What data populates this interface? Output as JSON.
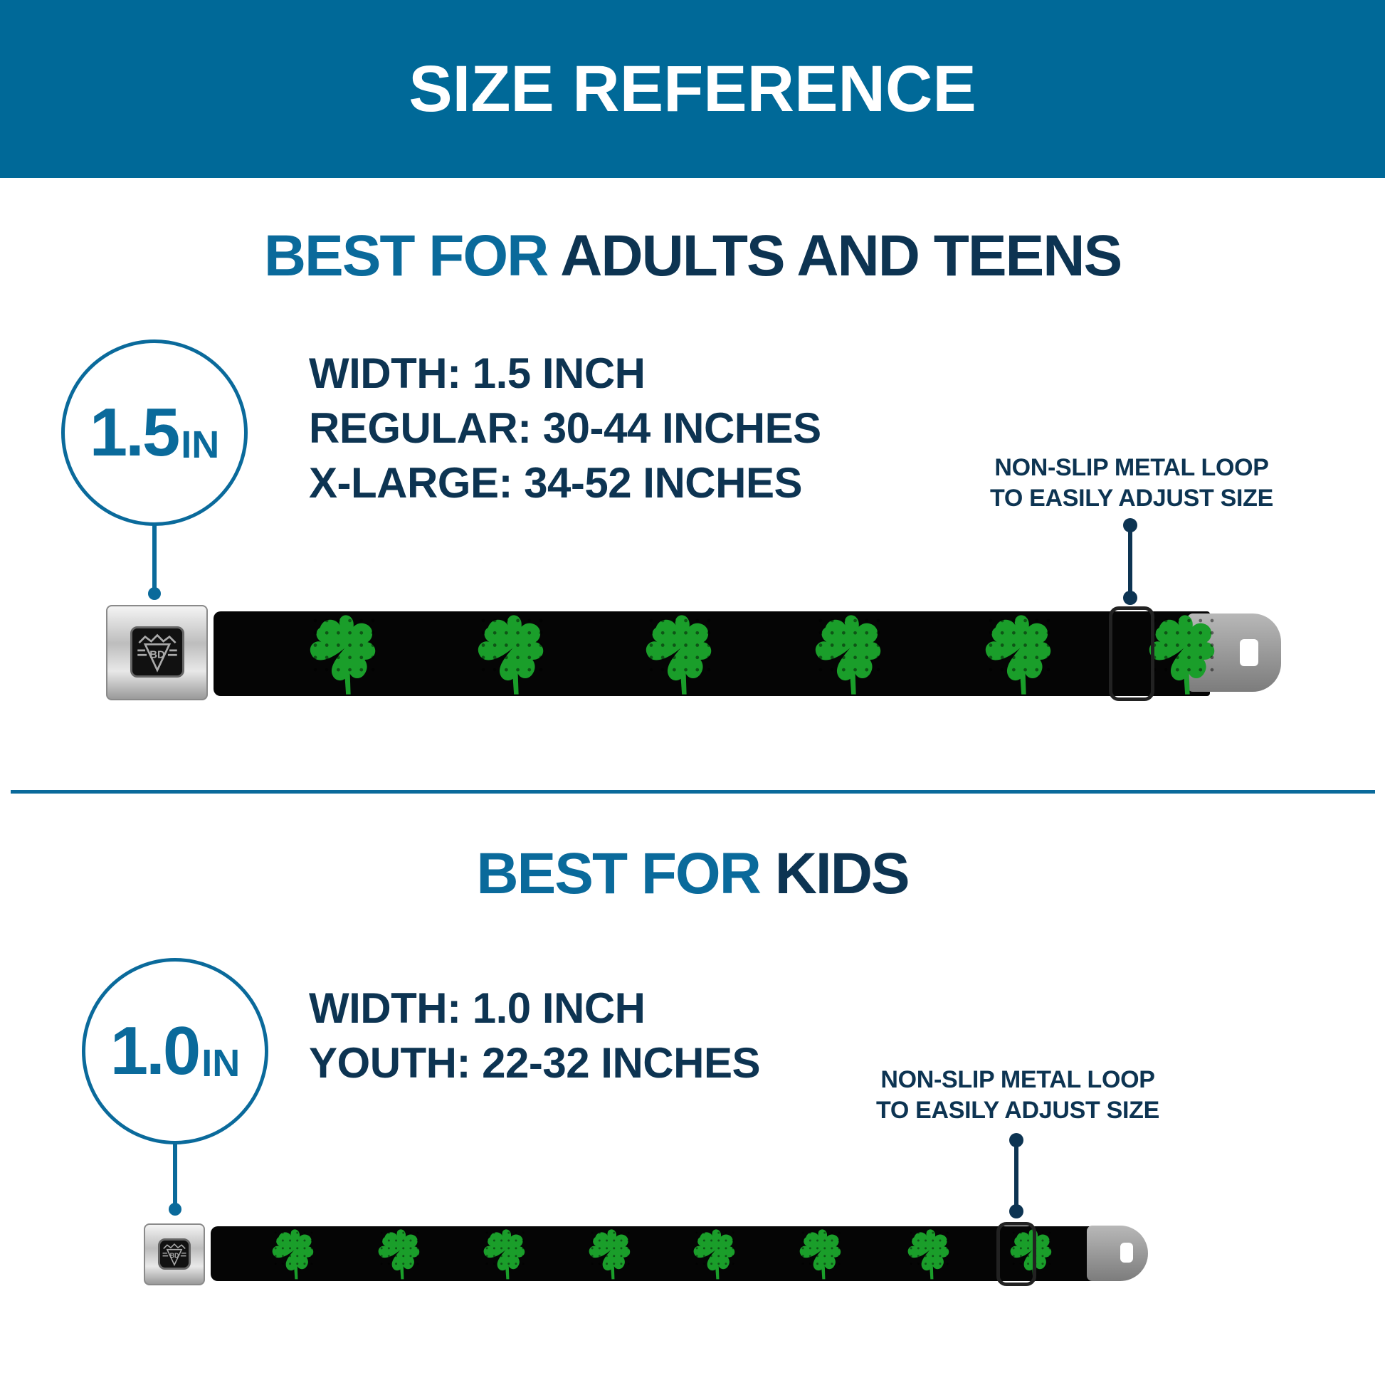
{
  "header": {
    "title": "SIZE REFERENCE"
  },
  "adults": {
    "heading_accent": "BEST FOR",
    "heading_rest": "ADULTS AND TEENS",
    "badge_number": "1.5",
    "badge_unit": "IN",
    "specs": [
      "WIDTH: 1.5 INCH",
      "REGULAR: 30-44 INCHES",
      "X-LARGE: 34-52 INCHES"
    ],
    "note_line1": "NON-SLIP METAL LOOP",
    "note_line2": "TO EASILY ADJUST SIZE"
  },
  "kids": {
    "heading_accent": "BEST FOR",
    "heading_rest": "KIDS",
    "badge_number": "1.0",
    "badge_unit": "IN",
    "specs": [
      "WIDTH: 1.0 INCH",
      "YOUTH: 22-32 INCHES"
    ],
    "note_line1": "NON-SLIP METAL LOOP",
    "note_line2": "TO EASILY ADJUST SIZE"
  },
  "buckle_logo": "BD",
  "colors": {
    "header": "#006998",
    "accent": "#0a6a9b",
    "text_dark": "#0d3452",
    "clover": "#1a9e2a",
    "strap": "#050505"
  },
  "icons": {
    "pattern": "four-leaf-clover-icon",
    "buckle": "seatbelt-buckle-icon"
  }
}
